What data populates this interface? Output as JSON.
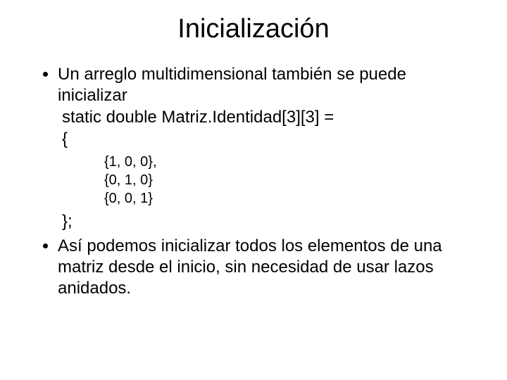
{
  "slide": {
    "title": "Inicialización",
    "body": {
      "bullet1": "Un arreglo multidimensional también se puede inicializar",
      "code_decl": "static double Matriz.Identidad[3][3] =",
      "open_brace": "{",
      "row1": "{1, 0, 0},",
      "row2": "{0, 1, 0}",
      "row3": "{0, 0, 1}",
      "close_brace": "};",
      "bullet2": "Así podemos inicializar todos los elementos de una matriz desde el inicio, sin necesidad de usar lazos anidados."
    },
    "style": {
      "background_color": "#ffffff",
      "text_color": "#000000",
      "title_fontsize": 38,
      "body_fontsize": 24,
      "matrix_fontsize": 20,
      "font_family": "Arial"
    }
  }
}
